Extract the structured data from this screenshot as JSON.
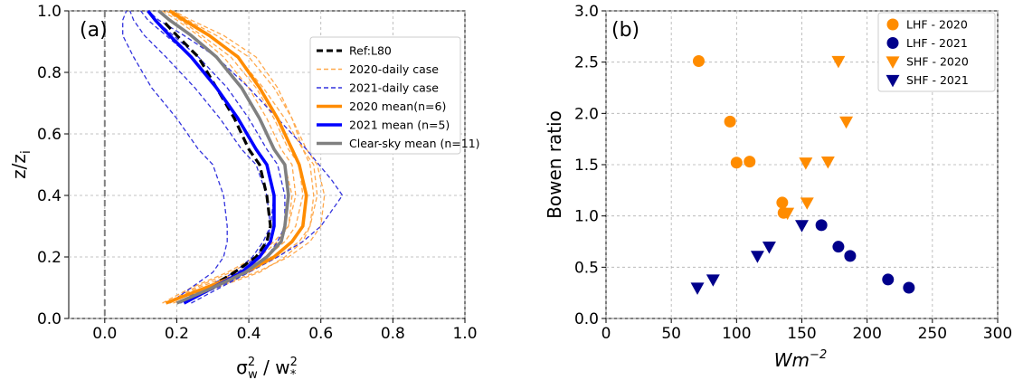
{
  "chart_data": [
    {
      "type": "line",
      "panel_label": "(a)",
      "xlabel_main": "σ",
      "xlabel_sub": "w",
      "xlabel_sup": "2",
      "xlabel_mid": " / w",
      "xlabel_sub2": "*",
      "xlabel_sup2": "2",
      "ylabel": "z/z",
      "ylabel_sub": "i",
      "xlim": [
        -0.1,
        1.0
      ],
      "ylim": [
        0.0,
        1.0
      ],
      "x_ticks": [
        "0.0",
        "0.2",
        "0.4",
        "0.6",
        "0.8",
        "1.0"
      ],
      "y_ticks": [
        "0.0",
        "0.2",
        "0.4",
        "0.6",
        "0.8",
        "1.0"
      ],
      "grid": true,
      "legend_position": "top-right",
      "colors": {
        "orange": "#ff8c00",
        "blue": "#0000ff",
        "gray": "#808080",
        "black": "#000000"
      },
      "legend": [
        {
          "label": "Ref:L80",
          "color": "#000000",
          "style": "dashed-thick"
        },
        {
          "label": "2020-daily case",
          "color": "#ffa94d",
          "style": "dashed"
        },
        {
          "label": "2021-daily case",
          "color": "#3333dd",
          "style": "dashed"
        },
        {
          "label": "2020 mean(n=6)",
          "color": "#ff8c00",
          "style": "solid-thick"
        },
        {
          "label": "2021 mean (n=5)",
          "color": "#0000ff",
          "style": "solid-thick"
        },
        {
          "label": "Clear-sky mean (n=11)",
          "color": "#808080",
          "style": "solid-thick"
        }
      ],
      "reference_line_x": 0.0,
      "series": [
        {
          "name": "2020-daily case",
          "style": "daily2020",
          "x": [
            0.16,
            0.24,
            0.34,
            0.42,
            0.47,
            0.51,
            0.53,
            0.52,
            0.49,
            0.45,
            0.4,
            0.33,
            0.26,
            0.2,
            0.16
          ],
          "y": [
            0.05,
            0.1,
            0.15,
            0.2,
            0.25,
            0.3,
            0.4,
            0.5,
            0.55,
            0.65,
            0.75,
            0.85,
            0.92,
            0.97,
            1.0
          ]
        },
        {
          "name": "2020-daily case",
          "style": "daily2020",
          "x": [
            0.18,
            0.28,
            0.4,
            0.48,
            0.54,
            0.57,
            0.59,
            0.58,
            0.55,
            0.5,
            0.44,
            0.37,
            0.29,
            0.22,
            0.18
          ],
          "y": [
            0.05,
            0.1,
            0.15,
            0.2,
            0.25,
            0.3,
            0.4,
            0.5,
            0.55,
            0.65,
            0.75,
            0.85,
            0.92,
            0.97,
            1.0
          ]
        },
        {
          "name": "2020-daily case",
          "style": "daily2020",
          "x": [
            0.17,
            0.26,
            0.37,
            0.45,
            0.5,
            0.53,
            0.55,
            0.54,
            0.51,
            0.47,
            0.42,
            0.35,
            0.27,
            0.21,
            0.17
          ],
          "y": [
            0.05,
            0.1,
            0.15,
            0.2,
            0.25,
            0.3,
            0.4,
            0.5,
            0.55,
            0.65,
            0.75,
            0.85,
            0.92,
            0.97,
            1.0
          ]
        },
        {
          "name": "2020-daily case",
          "style": "daily2020",
          "x": [
            0.19,
            0.3,
            0.42,
            0.51,
            0.57,
            0.6,
            0.61,
            0.59,
            0.56,
            0.52,
            0.47,
            0.4,
            0.31,
            0.23,
            0.19
          ],
          "y": [
            0.05,
            0.1,
            0.15,
            0.2,
            0.25,
            0.3,
            0.4,
            0.5,
            0.55,
            0.65,
            0.75,
            0.85,
            0.92,
            0.97,
            1.0
          ]
        },
        {
          "name": "2020-daily case",
          "style": "daily2020",
          "x": [
            0.17,
            0.25,
            0.35,
            0.43,
            0.48,
            0.51,
            0.52,
            0.5,
            0.47,
            0.43,
            0.38,
            0.31,
            0.24,
            0.18,
            0.15
          ],
          "y": [
            0.05,
            0.1,
            0.15,
            0.2,
            0.25,
            0.3,
            0.4,
            0.5,
            0.55,
            0.65,
            0.75,
            0.85,
            0.92,
            0.97,
            1.0
          ]
        },
        {
          "name": "2020-daily case",
          "style": "daily2020",
          "x": [
            0.2,
            0.31,
            0.43,
            0.5,
            0.55,
            0.57,
            0.58,
            0.57,
            0.55,
            0.52,
            0.48,
            0.42,
            0.33,
            0.24,
            0.19
          ],
          "y": [
            0.05,
            0.1,
            0.15,
            0.2,
            0.25,
            0.3,
            0.4,
            0.5,
            0.55,
            0.65,
            0.75,
            0.85,
            0.92,
            0.97,
            1.0
          ]
        },
        {
          "name": "2021-daily case",
          "style": "daily2021",
          "x": [
            0.2,
            0.28,
            0.36,
            0.41,
            0.44,
            0.46,
            0.47,
            0.45,
            0.42,
            0.37,
            0.31,
            0.24,
            0.17,
            0.12,
            0.1
          ],
          "y": [
            0.05,
            0.1,
            0.15,
            0.2,
            0.25,
            0.3,
            0.4,
            0.5,
            0.55,
            0.65,
            0.75,
            0.85,
            0.92,
            0.97,
            1.0
          ]
        },
        {
          "name": "2021-daily case",
          "style": "daily2021",
          "x": [
            0.22,
            0.31,
            0.4,
            0.48,
            0.55,
            0.6,
            0.66,
            0.63,
            0.56,
            0.48,
            0.4,
            0.31,
            0.22,
            0.15,
            0.12
          ],
          "y": [
            0.05,
            0.1,
            0.15,
            0.2,
            0.25,
            0.3,
            0.4,
            0.45,
            0.55,
            0.65,
            0.75,
            0.85,
            0.92,
            0.97,
            1.0
          ]
        },
        {
          "name": "2021-daily case",
          "style": "daily2021",
          "x": [
            0.18,
            0.24,
            0.3,
            0.33,
            0.34,
            0.34,
            0.33,
            0.3,
            0.26,
            0.2,
            0.13,
            0.08,
            0.05,
            0.05,
            0.06
          ],
          "y": [
            0.05,
            0.1,
            0.15,
            0.2,
            0.25,
            0.3,
            0.4,
            0.5,
            0.55,
            0.65,
            0.75,
            0.85,
            0.92,
            0.97,
            1.0
          ]
        },
        {
          "name": "2021-daily case",
          "style": "daily2021",
          "x": [
            0.21,
            0.29,
            0.37,
            0.42,
            0.45,
            0.46,
            0.45,
            0.42,
            0.38,
            0.32,
            0.25,
            0.17,
            0.11,
            0.08,
            0.07
          ],
          "y": [
            0.05,
            0.1,
            0.15,
            0.2,
            0.25,
            0.3,
            0.4,
            0.5,
            0.55,
            0.65,
            0.75,
            0.85,
            0.92,
            0.97,
            1.0
          ]
        },
        {
          "name": "2021-daily case",
          "style": "daily2021",
          "x": [
            0.24,
            0.32,
            0.4,
            0.45,
            0.48,
            0.5,
            0.5,
            0.48,
            0.45,
            0.4,
            0.34,
            0.26,
            0.19,
            0.14,
            0.12
          ],
          "y": [
            0.05,
            0.1,
            0.15,
            0.2,
            0.25,
            0.3,
            0.4,
            0.5,
            0.55,
            0.65,
            0.75,
            0.85,
            0.92,
            0.97,
            1.0
          ]
        },
        {
          "name": "Ref:L80",
          "style": "ref",
          "x": [
            0.29,
            0.36,
            0.42,
            0.45,
            0.46,
            0.45,
            0.43,
            0.4,
            0.36,
            0.31,
            0.26,
            0.2,
            0.16
          ],
          "y": [
            0.1,
            0.15,
            0.2,
            0.25,
            0.3,
            0.4,
            0.5,
            0.55,
            0.65,
            0.75,
            0.85,
            0.92,
            0.97
          ]
        },
        {
          "name": "2020 mean(n=6)",
          "style": "mean2020",
          "x": [
            0.17,
            0.28,
            0.39,
            0.47,
            0.52,
            0.55,
            0.56,
            0.54,
            0.52,
            0.48,
            0.43,
            0.37,
            0.29,
            0.22,
            0.18
          ],
          "y": [
            0.05,
            0.1,
            0.15,
            0.2,
            0.25,
            0.3,
            0.4,
            0.5,
            0.55,
            0.65,
            0.75,
            0.85,
            0.92,
            0.97,
            1.0
          ]
        },
        {
          "name": "2021 mean (n=5)",
          "style": "mean2021",
          "x": [
            0.22,
            0.3,
            0.38,
            0.43,
            0.46,
            0.47,
            0.47,
            0.45,
            0.42,
            0.37,
            0.31,
            0.24,
            0.18,
            0.14,
            0.12
          ],
          "y": [
            0.05,
            0.1,
            0.15,
            0.2,
            0.25,
            0.3,
            0.4,
            0.5,
            0.55,
            0.65,
            0.75,
            0.85,
            0.92,
            0.97,
            1.0
          ]
        },
        {
          "name": "Clear-sky mean (n=11)",
          "style": "meanClear",
          "x": [
            0.2,
            0.3,
            0.39,
            0.45,
            0.49,
            0.5,
            0.51,
            0.5,
            0.47,
            0.43,
            0.38,
            0.31,
            0.24,
            0.18,
            0.15
          ],
          "y": [
            0.05,
            0.1,
            0.15,
            0.2,
            0.25,
            0.3,
            0.4,
            0.5,
            0.55,
            0.65,
            0.75,
            0.85,
            0.92,
            0.97,
            1.0
          ]
        }
      ]
    },
    {
      "type": "scatter",
      "panel_label": "(b)",
      "xlabel": "Wm",
      "xlabel_sup": "−2",
      "ylabel": "Bowen ratio",
      "xlim": [
        0,
        300
      ],
      "ylim": [
        0.0,
        3.0
      ],
      "x_ticks": [
        "0",
        "50",
        "100",
        "150",
        "200",
        "250",
        "300"
      ],
      "y_ticks": [
        "0.0",
        "0.5",
        "1.0",
        "1.5",
        "2.0",
        "2.5",
        "3.0"
      ],
      "grid": true,
      "legend_position": "top-right",
      "series": [
        {
          "name": "LHF - 2020",
          "marker": "circle",
          "color": "#ff8c00",
          "points": [
            [
              71,
              2.51
            ],
            [
              95,
              1.92
            ],
            [
              100,
              1.52
            ],
            [
              110,
              1.53
            ],
            [
              135,
              1.13
            ],
            [
              136,
              1.03
            ]
          ]
        },
        {
          "name": "LHF - 2021",
          "marker": "circle",
          "color": "#00008b",
          "points": [
            [
              165,
              0.91
            ],
            [
              178,
              0.7
            ],
            [
              187,
              0.61
            ],
            [
              216,
              0.38
            ],
            [
              232,
              0.3
            ]
          ]
        },
        {
          "name": "SHF - 2020",
          "marker": "triangle-down",
          "color": "#ff8c00",
          "points": [
            [
              178,
              2.51
            ],
            [
              184,
              1.92
            ],
            [
              153,
              1.52
            ],
            [
              170,
              1.53
            ],
            [
              154,
              1.13
            ],
            [
              139,
              1.03
            ]
          ]
        },
        {
          "name": "SHF - 2021",
          "marker": "triangle-down",
          "color": "#00008b",
          "points": [
            [
              150,
              0.91
            ],
            [
              125,
              0.7
            ],
            [
              116,
              0.61
            ],
            [
              82,
              0.38
            ],
            [
              70,
              0.3
            ]
          ]
        }
      ]
    }
  ]
}
